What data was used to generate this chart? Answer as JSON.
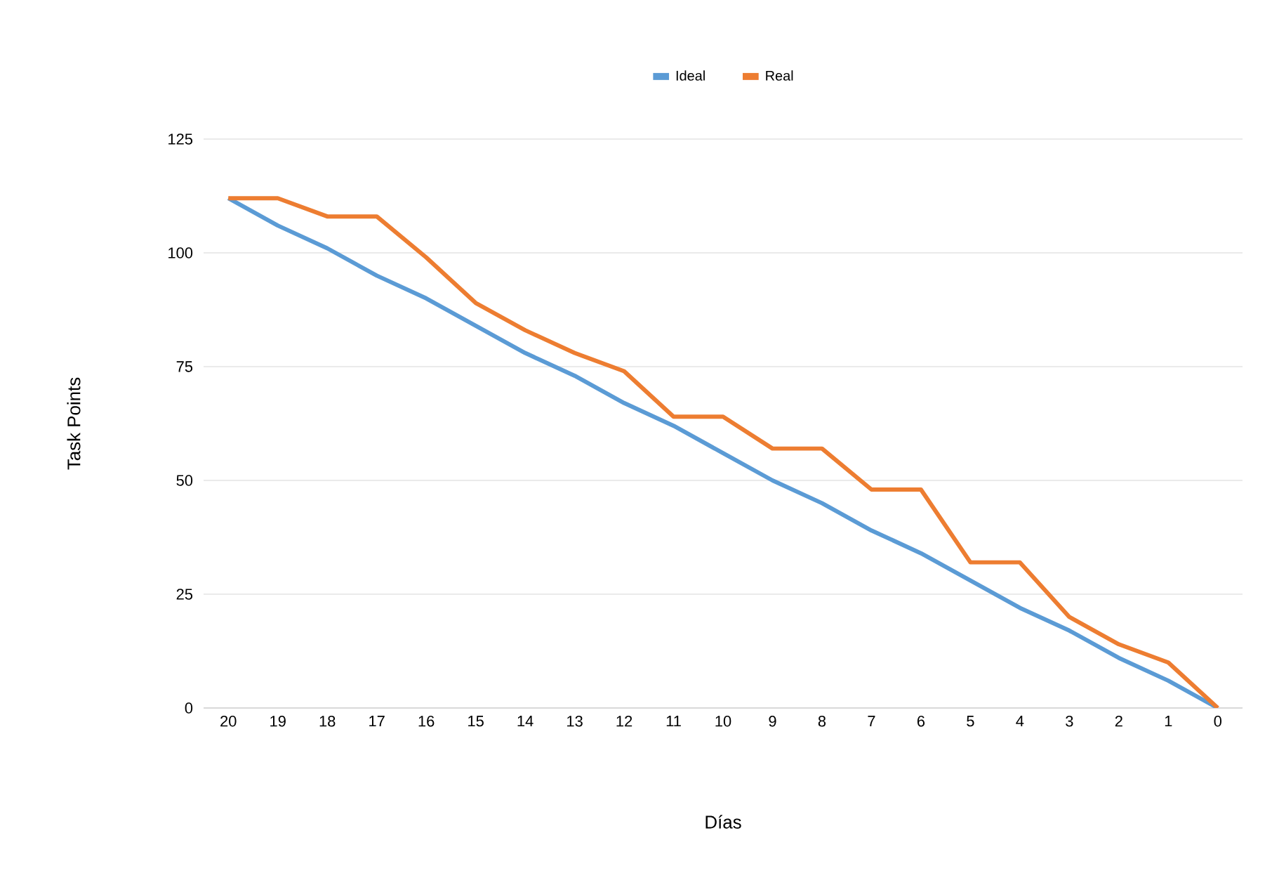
{
  "chart_data": {
    "type": "line",
    "xlabel": "Días",
    "ylabel": "Task Points",
    "categories": [
      "20",
      "19",
      "18",
      "17",
      "16",
      "15",
      "14",
      "13",
      "12",
      "11",
      "10",
      "9",
      "8",
      "7",
      "6",
      "5",
      "4",
      "3",
      "2",
      "1",
      "0"
    ],
    "series": [
      {
        "name": "Ideal",
        "color": "#5b9bd5",
        "values": [
          112,
          106,
          101,
          95,
          90,
          84,
          78,
          73,
          67,
          62,
          56,
          50,
          45,
          39,
          34,
          28,
          22,
          17,
          11,
          6,
          0
        ]
      },
      {
        "name": "Real",
        "color": "#ed7d31",
        "values": [
          112,
          112,
          108,
          108,
          99,
          89,
          83,
          78,
          74,
          64,
          64,
          57,
          57,
          48,
          48,
          32,
          32,
          20,
          14,
          10,
          0
        ]
      }
    ],
    "ylim": [
      0,
      125
    ],
    "yticks": [
      0,
      25,
      50,
      75,
      100,
      125
    ],
    "grid": "y",
    "legend": "top"
  }
}
